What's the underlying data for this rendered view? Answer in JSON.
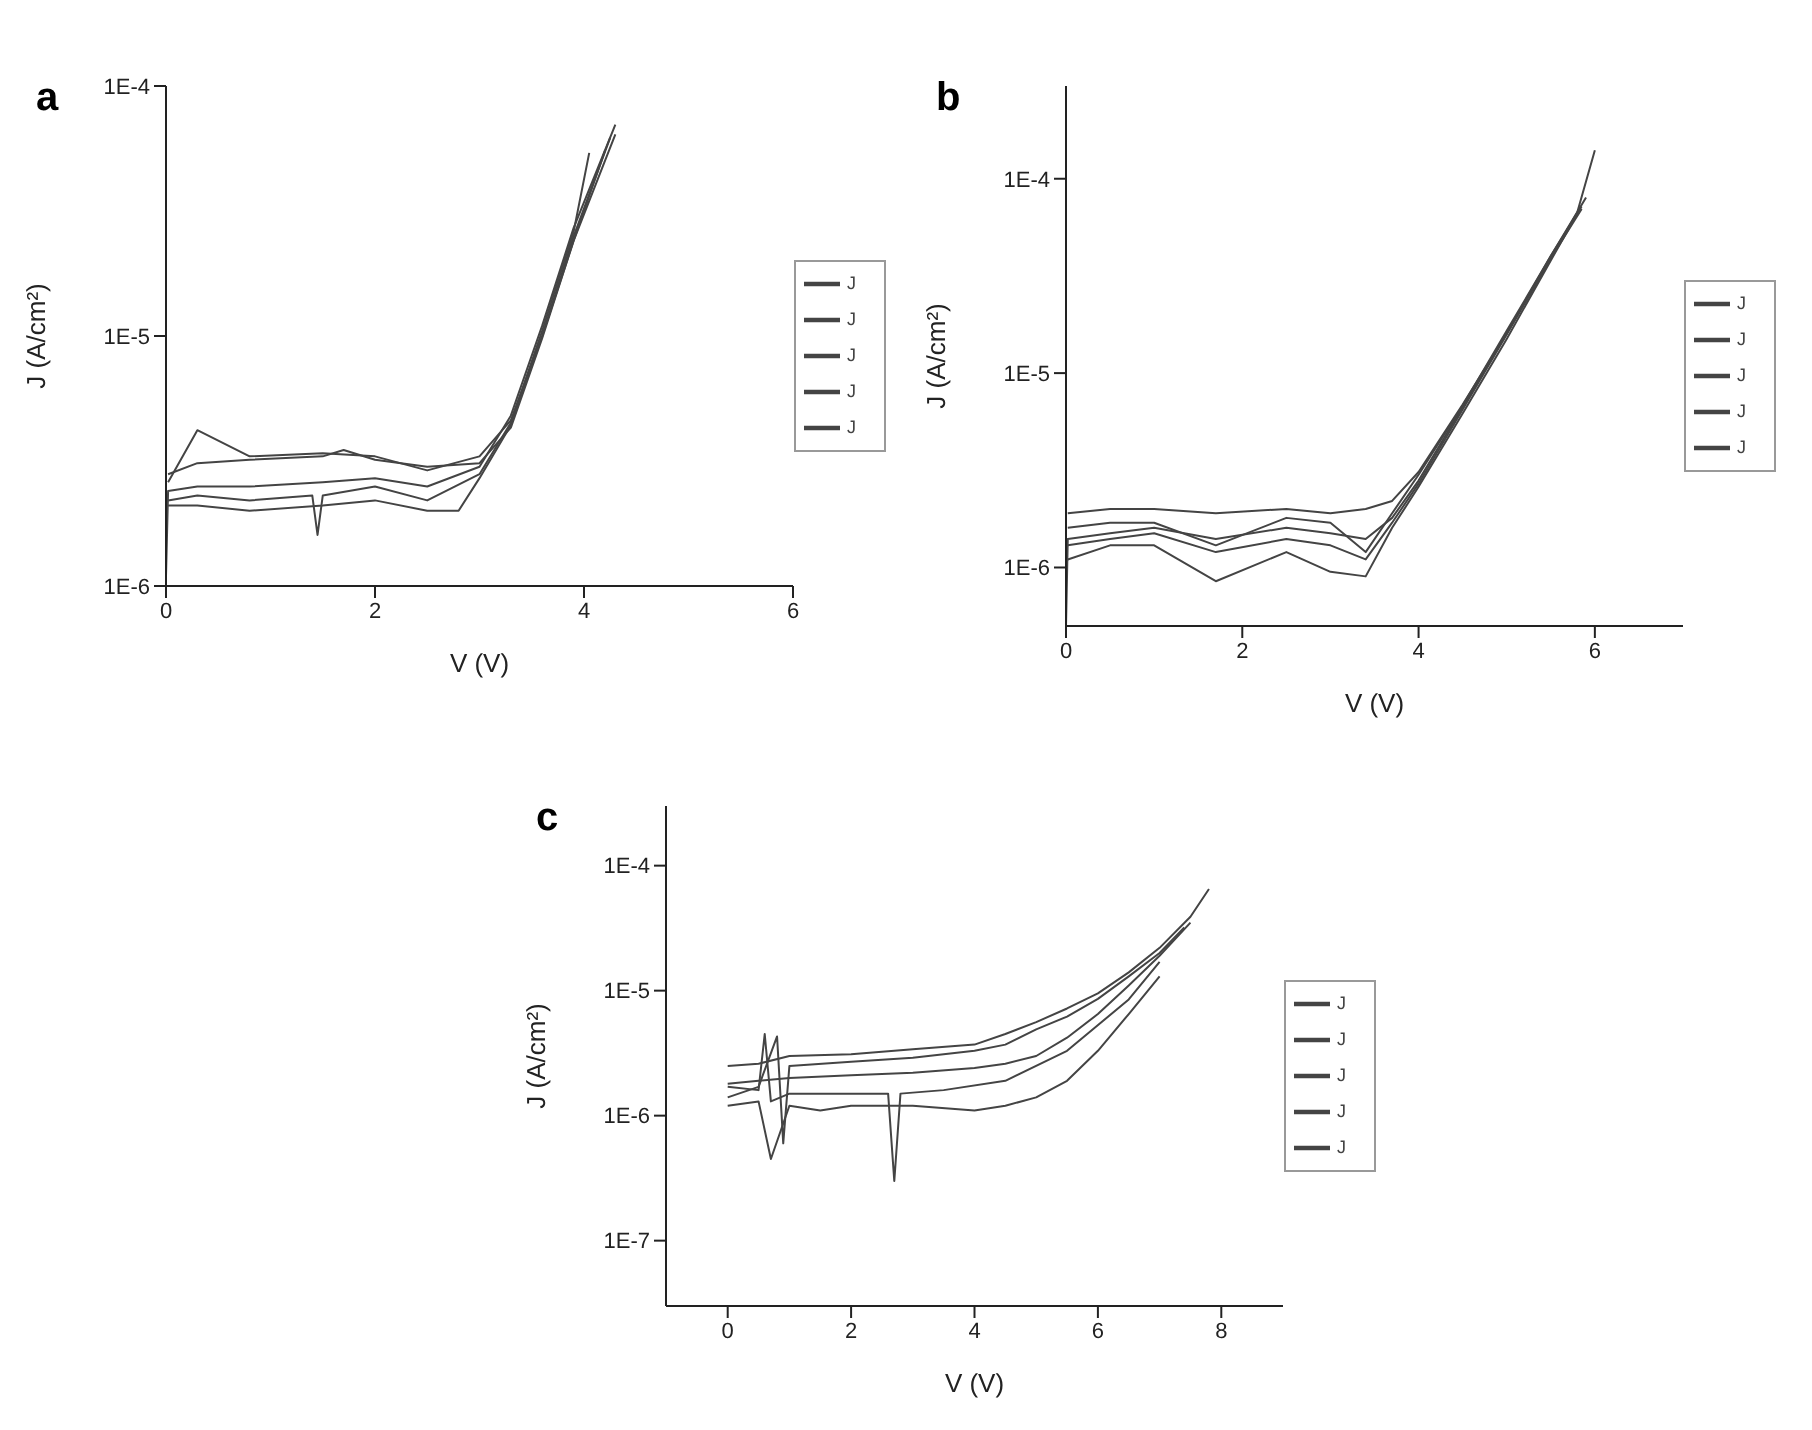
{
  "chart_data": [
    {
      "type": "line",
      "title": "a",
      "xlabel": "V (V)",
      "ylabel": "J (A/cm²)",
      "log": "y",
      "xlim": [
        0,
        6
      ],
      "xticks": [
        0,
        2,
        4,
        6
      ],
      "ylim": [
        1e-06,
        0.0001
      ],
      "yticks": [
        {
          "value": 1e-06,
          "label": "1E-6"
        },
        {
          "value": 1e-05,
          "label": "1E-5"
        },
        {
          "value": 0.0001,
          "label": "1E-4"
        }
      ],
      "legend": "right",
      "marker": "none",
      "line_style": "solid",
      "series": [
        {
          "name": "J",
          "color": "#444444",
          "x": [
            0,
            0.02,
            0.3,
            0.8,
            1.5,
            2.0,
            2.5,
            3.0,
            3.3,
            3.6,
            3.9,
            4.3
          ],
          "values": [
            1.1e-06,
            2.4e-06,
            2.5e-06,
            2.5e-06,
            2.6e-06,
            2.7e-06,
            2.5e-06,
            3e-06,
            4.8e-06,
            1.1e-05,
            2.7e-05,
            7e-05
          ]
        },
        {
          "name": "J",
          "color": "#444444",
          "x": [
            0.02,
            0.3,
            0.8,
            1.5,
            2.0,
            2.5,
            3.0,
            3.3,
            3.6,
            3.9,
            4.25
          ],
          "values": [
            2.6e-06,
            4.2e-06,
            3.3e-06,
            3.4e-06,
            3.3e-06,
            2.9e-06,
            3.3e-06,
            4.6e-06,
            1e-05,
            2.5e-05,
            6.2e-05
          ]
        },
        {
          "name": "J",
          "color": "#444444",
          "x": [
            0.02,
            0.3,
            0.8,
            1.4,
            1.45,
            1.5,
            2.0,
            2.5,
            3.0,
            3.3,
            3.6,
            3.9,
            4.05
          ],
          "values": [
            2.2e-06,
            2.3e-06,
            2.2e-06,
            2.3e-06,
            1.6e-06,
            2.3e-06,
            2.5e-06,
            2.2e-06,
            2.8e-06,
            4.5e-06,
            1.05e-05,
            2.6e-05,
            5.4e-05
          ]
        },
        {
          "name": "J",
          "color": "#444444",
          "x": [
            0.02,
            0.3,
            0.8,
            1.5,
            2.0,
            2.5,
            2.8,
            3.0,
            3.3,
            3.6,
            3.9,
            4.3
          ],
          "values": [
            2.1e-06,
            2.1e-06,
            2e-06,
            2.1e-06,
            2.2e-06,
            2e-06,
            2e-06,
            2.7e-06,
            4.4e-06,
            1e-05,
            2.4e-05,
            6.4e-05
          ]
        },
        {
          "name": "J",
          "color": "#444444",
          "x": [
            0.02,
            0.3,
            0.8,
            1.5,
            1.7,
            2.0,
            2.5,
            3.0,
            3.3,
            3.6,
            3.9,
            4.2
          ],
          "values": [
            2.8e-06,
            3.1e-06,
            3.2e-06,
            3.3e-06,
            3.5e-06,
            3.2e-06,
            3e-06,
            3.1e-06,
            4.3e-06,
            9.8e-06,
            2.4e-05,
            5.5e-05
          ]
        }
      ]
    },
    {
      "type": "line",
      "title": "b",
      "xlabel": "V (V)",
      "ylabel": "J (A/cm²)",
      "log": "y",
      "xlim": [
        0,
        7
      ],
      "xticks": [
        0,
        2,
        4,
        6
      ],
      "ylim": [
        5e-07,
        0.0003
      ],
      "yticks": [
        {
          "value": 1e-06,
          "label": "1E-6"
        },
        {
          "value": 1e-05,
          "label": "1E-5"
        },
        {
          "value": 0.0001,
          "label": "1E-4"
        }
      ],
      "legend": "right",
      "marker": "none",
      "line_style": "solid",
      "series": [
        {
          "name": "J",
          "color": "#444444",
          "x": [
            0,
            0.02,
            0.5,
            1.0,
            1.7,
            2.5,
            3.0,
            3.4,
            3.7,
            4.0,
            4.5,
            5.0,
            5.5,
            5.8,
            6.0
          ],
          "values": [
            5e-07,
            1.4e-06,
            1.5e-06,
            1.6e-06,
            1.4e-06,
            1.6e-06,
            1.5e-06,
            1.4e-06,
            1.8e-06,
            2.8e-06,
            6.7e-06,
            1.6e-05,
            3.9e-05,
            6.7e-05,
            0.00014
          ]
        },
        {
          "name": "J",
          "color": "#444444",
          "x": [
            0.02,
            0.5,
            1.0,
            1.7,
            2.5,
            3.0,
            3.4,
            3.7,
            4.0,
            4.5,
            5.0,
            5.5,
            5.9
          ],
          "values": [
            1.9e-06,
            2e-06,
            2e-06,
            1.9e-06,
            2e-06,
            1.9e-06,
            2e-06,
            2.2e-06,
            3.1e-06,
            6.9e-06,
            1.6e-05,
            4e-05,
            8e-05
          ]
        },
        {
          "name": "J",
          "color": "#444444",
          "x": [
            0.02,
            0.5,
            1.0,
            1.7,
            2.5,
            3.0,
            3.4,
            3.7,
            4.0,
            4.5,
            5.0,
            5.5,
            5.8
          ],
          "values": [
            1.1e-06,
            1.3e-06,
            1.3e-06,
            8.5e-07,
            1.2e-06,
            9.5e-07,
            9e-07,
            1.6e-06,
            2.6e-06,
            6.2e-06,
            1.5e-05,
            3.8e-05,
            6.6e-05
          ]
        },
        {
          "name": "J",
          "color": "#444444",
          "x": [
            0.02,
            0.5,
            1.0,
            1.7,
            2.5,
            3.0,
            3.4,
            3.7,
            4.0,
            4.5,
            5.0,
            5.5,
            5.85
          ],
          "values": [
            1.6e-06,
            1.7e-06,
            1.7e-06,
            1.3e-06,
            1.8e-06,
            1.7e-06,
            1.2e-06,
            1.9e-06,
            3e-06,
            6.8e-06,
            1.65e-05,
            4e-05,
            7.2e-05
          ]
        },
        {
          "name": "J",
          "color": "#444444",
          "x": [
            0.02,
            0.5,
            1.0,
            1.7,
            2.5,
            3.0,
            3.4,
            3.7,
            4.0,
            4.5,
            5.0,
            5.5,
            5.85
          ],
          "values": [
            1.3e-06,
            1.4e-06,
            1.5e-06,
            1.2e-06,
            1.4e-06,
            1.3e-06,
            1.1e-06,
            1.7e-06,
            2.7e-06,
            6.5e-06,
            1.58e-05,
            3.9e-05,
            7e-05
          ]
        }
      ]
    },
    {
      "type": "line",
      "title": "c",
      "xlabel": "V (V)",
      "ylabel": "J (A/cm²)",
      "log": "y",
      "xlim": [
        -1,
        9
      ],
      "xticks": [
        0,
        2,
        4,
        6,
        8
      ],
      "ylim": [
        3e-08,
        0.0003
      ],
      "yticks": [
        {
          "value": 1e-07,
          "label": "1E-7"
        },
        {
          "value": 1e-06,
          "label": "1E-6"
        },
        {
          "value": 1e-05,
          "label": "1E-5"
        },
        {
          "value": 0.0001,
          "label": "1E-4"
        }
      ],
      "legend": "right",
      "marker": "none",
      "line_style": "solid",
      "series": [
        {
          "name": "J",
          "color": "#444444",
          "x": [
            0,
            0.5,
            0.6,
            0.7,
            1.0,
            2.0,
            2.6,
            2.7,
            2.8,
            3.5,
            4.5,
            5.5,
            6.5,
            7.0
          ],
          "values": [
            1.7e-06,
            1.6e-06,
            4.5e-06,
            1.3e-06,
            1.5e-06,
            1.5e-06,
            1.5e-06,
            3e-07,
            1.5e-06,
            1.6e-06,
            1.9e-06,
            3.3e-06,
            8.5e-06,
            1.7e-05
          ]
        },
        {
          "name": "J",
          "color": "#444444",
          "x": [
            0,
            0.5,
            1.0,
            2.0,
            3.0,
            4.0,
            4.5,
            5.0,
            5.5,
            6.0,
            6.5,
            7.0,
            7.5,
            7.8
          ],
          "values": [
            2.5e-06,
            2.6e-06,
            3e-06,
            3.1e-06,
            3.4e-06,
            3.7e-06,
            4.5e-06,
            5.6e-06,
            7.2e-06,
            9.5e-06,
            1.4e-05,
            2.2e-05,
            3.9e-05,
            6.5e-05
          ]
        },
        {
          "name": "J",
          "color": "#444444",
          "x": [
            0,
            0.5,
            0.7,
            1.0,
            1.5,
            2.0,
            3.0,
            4.0,
            4.5,
            5.0,
            5.5,
            6.0,
            6.5,
            7.0
          ],
          "values": [
            1.2e-06,
            1.3e-06,
            4.5e-07,
            1.2e-06,
            1.1e-06,
            1.2e-06,
            1.2e-06,
            1.1e-06,
            1.2e-06,
            1.4e-06,
            1.9e-06,
            3.3e-06,
            6.5e-06,
            1.3e-05
          ]
        },
        {
          "name": "J",
          "color": "#444444",
          "x": [
            0,
            0.5,
            1.0,
            2.0,
            3.0,
            4.0,
            4.5,
            5.0,
            5.5,
            6.0,
            6.5,
            7.0,
            7.5
          ],
          "values": [
            1.8e-06,
            1.9e-06,
            2e-06,
            2.1e-06,
            2.2e-06,
            2.4e-06,
            2.6e-06,
            3e-06,
            4.2e-06,
            6.5e-06,
            1.1e-05,
            1.9e-05,
            3.5e-05
          ]
        },
        {
          "name": "J",
          "color": "#444444",
          "x": [
            0,
            0.5,
            0.8,
            0.9,
            1.0,
            2.0,
            3.0,
            4.0,
            4.5,
            5.0,
            5.5,
            6.0,
            6.5,
            7.0,
            7.4
          ],
          "values": [
            1.4e-06,
            1.7e-06,
            4.3e-06,
            6e-07,
            2.5e-06,
            2.7e-06,
            2.9e-06,
            3.3e-06,
            3.7e-06,
            4.9e-06,
            6.2e-06,
            8.6e-06,
            1.3e-05,
            2e-05,
            3.2e-05
          ]
        }
      ]
    }
  ]
}
